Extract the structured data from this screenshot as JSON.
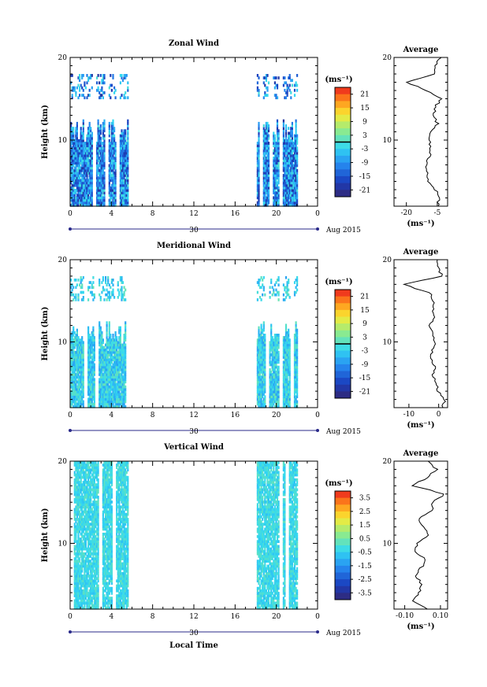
{
  "chart_data": [
    {
      "type": "heatmap",
      "title": "Zonal Wind",
      "ylabel": "Height (km)",
      "xlabel": "",
      "xlim": [
        0,
        24
      ],
      "ylim": [
        2,
        20
      ],
      "x_ticks": [
        "0",
        "4",
        "8",
        "12",
        "16",
        "20",
        "0"
      ],
      "y_ticks": [
        "10",
        "20"
      ],
      "date_day": "30",
      "date_month_year": "Aug 2015",
      "colorbar": {
        "unit": "(ms⁻¹)",
        "ticks": [
          "21",
          "15",
          "9",
          "3",
          "-3",
          "-9",
          "-15",
          "-21"
        ],
        "range": [
          -24,
          24
        ],
        "zero_line": 0
      },
      "observation_windows_hours": [
        [
          0,
          5.6
        ],
        [
          18.1,
          22.0
        ]
      ],
      "typical_value_range": [
        -20,
        0
      ],
      "profile": {
        "title": "Average",
        "x_ticks": [
          "-20",
          "-5"
        ],
        "xlim": [
          -26,
          0
        ],
        "xlabel": "(ms⁻¹)",
        "y_ticks": [
          "20",
          "10"
        ],
        "height_km": [
          2,
          3,
          4,
          5,
          6,
          7,
          8,
          9,
          10,
          11,
          12,
          13,
          14,
          15,
          16,
          17,
          18,
          19,
          20
        ],
        "values": [
          -5,
          -4,
          -6,
          -9,
          -10,
          -10,
          -9,
          -8,
          -9,
          -8,
          -5,
          -7,
          -6,
          -3,
          -10,
          -20,
          -6,
          -6,
          -3
        ]
      }
    },
    {
      "type": "heatmap",
      "title": "Meridional Wind",
      "ylabel": "Height (km)",
      "xlabel": "",
      "xlim": [
        0,
        24
      ],
      "ylim": [
        2,
        20
      ],
      "x_ticks": [
        "0",
        "4",
        "8",
        "12",
        "16",
        "20",
        "0"
      ],
      "y_ticks": [
        "10",
        "20"
      ],
      "date_day": "30",
      "date_month_year": "Aug 2015",
      "colorbar": {
        "unit": "(ms⁻¹)",
        "ticks": [
          "21",
          "15",
          "9",
          "3",
          "-3",
          "-9",
          "-15",
          "-21"
        ],
        "range": [
          -24,
          24
        ],
        "zero_line": 0
      },
      "observation_windows_hours": [
        [
          0,
          5.6
        ],
        [
          18.1,
          22.0
        ]
      ],
      "typical_value_range": [
        -8,
        2
      ],
      "profile": {
        "title": "Average",
        "x_ticks": [
          "-10",
          "0"
        ],
        "xlim": [
          -15,
          3
        ],
        "xlabel": "(ms⁻¹)",
        "y_ticks": [
          "20",
          "10"
        ],
        "height_km": [
          2,
          3,
          4,
          5,
          6,
          7,
          8,
          9,
          10,
          11,
          12,
          13,
          14,
          15,
          16,
          17,
          18,
          19,
          20
        ],
        "values": [
          1,
          2,
          0,
          -1,
          -2,
          -1,
          -3,
          -2,
          -1,
          -2,
          -3,
          -1,
          -2,
          -2,
          -3,
          -12,
          1,
          0,
          -1
        ]
      }
    },
    {
      "type": "heatmap",
      "title": "Vertical Wind",
      "ylabel": "Height (km)",
      "xlabel": "Local Time",
      "xlim": [
        0,
        24
      ],
      "ylim": [
        2,
        20
      ],
      "x_ticks": [
        "0",
        "4",
        "8",
        "12",
        "16",
        "20",
        "0"
      ],
      "y_ticks": [
        "10",
        "20"
      ],
      "date_day": "30",
      "date_month_year": "Aug 2015",
      "colorbar": {
        "unit": "(ms⁻¹)",
        "ticks": [
          "3.5",
          "2.5",
          "1.5",
          "0.5",
          "-0.5",
          "-1.5",
          "-2.5",
          "-3.5"
        ],
        "range": [
          -4,
          4
        ],
        "zero_line": null
      },
      "observation_windows_hours": [
        [
          0,
          5.6
        ],
        [
          18.1,
          22.0
        ]
      ],
      "typical_value_range": [
        -0.8,
        0.2
      ],
      "profile": {
        "title": "Average",
        "x_ticks": [
          "-0.10",
          "0.10"
        ],
        "xlim": [
          -0.16,
          0.14
        ],
        "xlabel": "(ms⁻¹)",
        "y_ticks": [
          "20",
          "10"
        ],
        "height_km": [
          2,
          3,
          4,
          5,
          6,
          7,
          8,
          9,
          10,
          11,
          12,
          13,
          14,
          15,
          16,
          17,
          18,
          19,
          20
        ],
        "values": [
          0.02,
          -0.06,
          -0.02,
          0.0,
          -0.04,
          -0.01,
          0.02,
          -0.05,
          -0.03,
          0.04,
          0.01,
          -0.02,
          0.05,
          0.06,
          0.12,
          -0.05,
          0.02,
          0.08,
          0.03
        ]
      }
    }
  ]
}
